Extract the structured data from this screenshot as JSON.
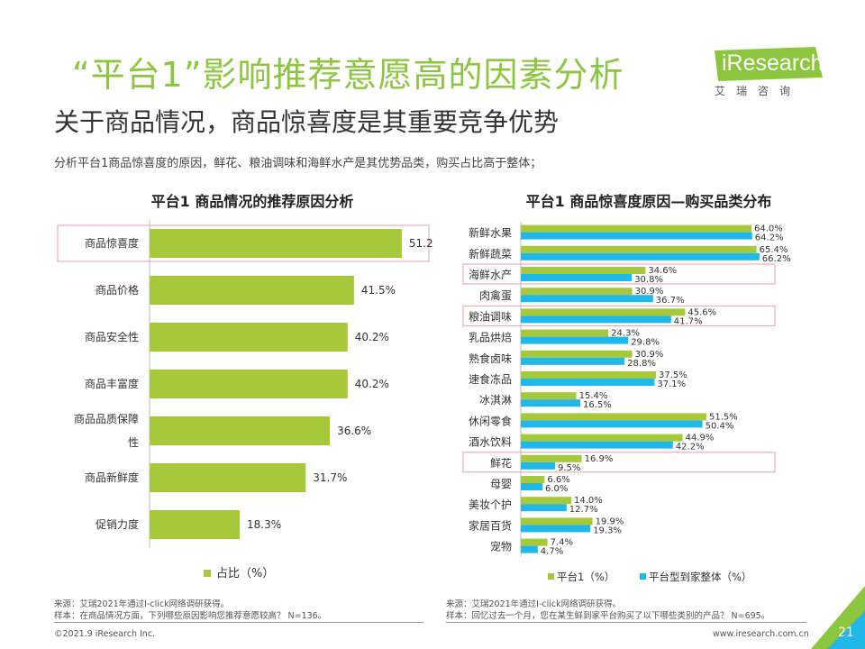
{
  "header": {
    "title": "“平台1”影响推荐意愿高的因素分析",
    "subtitle": "关于商品情况，商品惊喜度是其重要竞争优势",
    "description": "分析平台1商品惊喜度的原因，鲜花、粮油调味和海鲜水产是其优势品类，购买占比高于整体；"
  },
  "logo": {
    "text": "iResearch",
    "sub": "艾瑞咨询"
  },
  "colors": {
    "green": "#a5c93a",
    "cyan": "#1fb8e8",
    "title_green": "#8cc63e",
    "highlight": "#e8a0a8"
  },
  "chart_data": [
    {
      "type": "bar",
      "orientation": "horizontal",
      "title": "平台1 商品情况的推荐原因分析",
      "categories": [
        "商品惊喜度",
        "商品价格",
        "商品安全性",
        "商品丰富度",
        "商品品质保障性",
        "商品新鲜度",
        "促销力度"
      ],
      "category_lines": [
        [
          "商品惊喜度"
        ],
        [
          "商品价格"
        ],
        [
          "商品安全性"
        ],
        [
          "商品丰富度"
        ],
        [
          "商品品质保障",
          "性"
        ],
        [
          "商品新鲜度"
        ],
        [
          "促销力度"
        ]
      ],
      "values": [
        51.2,
        41.5,
        40.2,
        40.2,
        36.6,
        31.7,
        18.3
      ],
      "value_labels": [
        "51.2%",
        "41.5%",
        "40.2%",
        "40.2%",
        "36.6%",
        "31.7%",
        "18.3%"
      ],
      "series_name": "占比（%）",
      "highlighted": [
        "商品惊喜度"
      ],
      "xlim": [
        0,
        60
      ]
    },
    {
      "type": "bar",
      "orientation": "horizontal",
      "title": "平台1 商品惊喜度原因—购买品类分布",
      "categories": [
        "新鲜水果",
        "新鲜蔬菜",
        "海鲜水产",
        "肉禽蛋",
        "粮油调味",
        "乳品烘焙",
        "熟食卤味",
        "速食冻品",
        "冰淇淋",
        "休闲零食",
        "酒水饮料",
        "鲜花",
        "母婴",
        "美妆个护",
        "家居百货",
        "宠物"
      ],
      "series": [
        {
          "name": "平台1（%）",
          "values": [
            64.0,
            65.4,
            34.6,
            30.9,
            45.6,
            24.3,
            30.9,
            37.5,
            15.4,
            51.5,
            44.9,
            16.9,
            6.6,
            14.0,
            19.9,
            7.4
          ],
          "labels": [
            "64.0%",
            "65.4%",
            "34.6%",
            "30.9%",
            "45.6%",
            "24.3%",
            "30.9%",
            "37.5%",
            "15.4%",
            "51.5%",
            "44.9%",
            "16.9%",
            "6.6%",
            "14.0%",
            "19.9%",
            "7.4%"
          ]
        },
        {
          "name": "平台型到家整体（%）",
          "values": [
            64.2,
            66.2,
            30.8,
            36.7,
            41.7,
            29.8,
            28.8,
            37.1,
            16.5,
            50.4,
            42.2,
            9.5,
            6.0,
            12.7,
            19.3,
            4.7
          ],
          "labels": [
            "64.2%",
            "66.2%",
            "30.8%",
            "36.7%",
            "41.7%",
            "29.8%",
            "28.8%",
            "37.1%",
            "16.5%",
            "50.4%",
            "42.2%",
            "9.5%",
            "6.0%",
            "12.7%",
            "19.3%",
            "4.7%"
          ]
        }
      ],
      "highlighted": [
        "海鲜水产",
        "粮油调味",
        "鲜花"
      ],
      "xlim": [
        0,
        75
      ]
    }
  ],
  "footer": {
    "left_source": "来源：艾瑞2021年通过I-click网络调研获得。",
    "left_sample": "样本：在商品情况方面，下列哪些原因影响您推荐意愿较高？ N=136。",
    "right_source": "来源：艾瑞2021年通过I-click网络调研获得。",
    "right_sample": "样本：回忆过去一个月，您在某生鲜到家平台购买了以下哪些类别的产品？ N=695。",
    "copyright": "©2021.9 iResearch Inc.",
    "website": "www.iresearch.com.cn",
    "page": "21"
  }
}
